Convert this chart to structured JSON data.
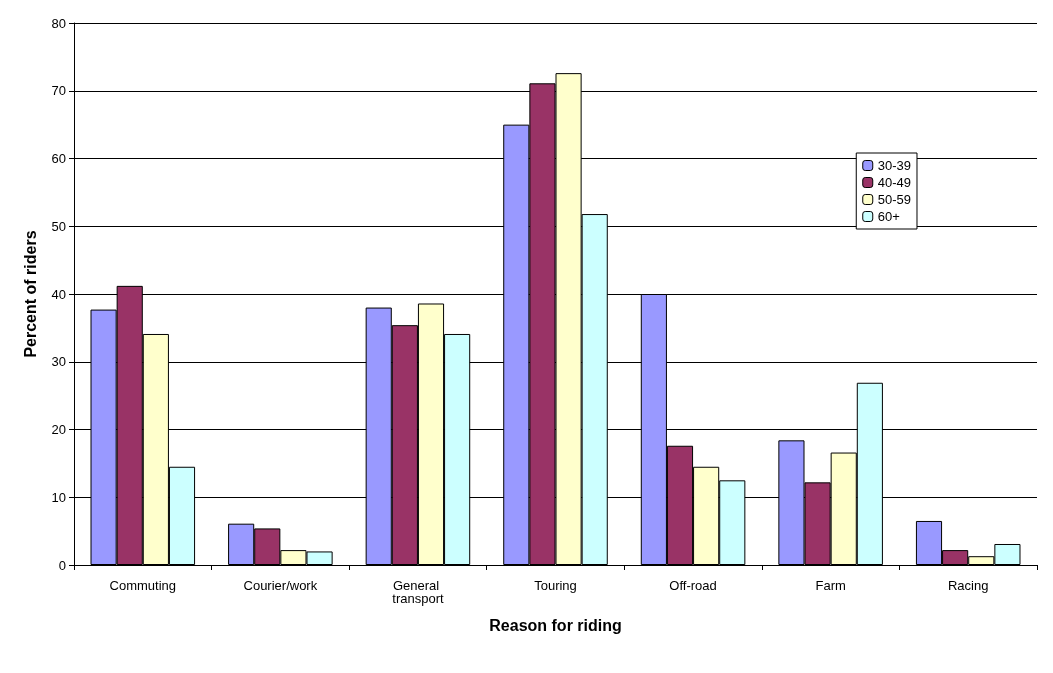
{
  "chart_data": {
    "type": "bar",
    "xlabel": "Reason for riding",
    "ylabel": "Percent of riders",
    "categories": [
      "Commuting",
      "Courier/work",
      "General transport",
      "Touring",
      "Off-road",
      "Farm",
      "Racing"
    ],
    "series": [
      {
        "name": "30-39",
        "color": "#9999ff",
        "values": [
          37.7,
          6.1,
          38.0,
          65.0,
          40.0,
          18.4,
          6.5
        ]
      },
      {
        "name": "40-49",
        "color": "#993366",
        "values": [
          41.2,
          5.4,
          35.4,
          71.1,
          17.6,
          12.2,
          2.2
        ]
      },
      {
        "name": "50-59",
        "color": "#ffffcc",
        "values": [
          34.1,
          2.2,
          38.6,
          72.6,
          14.5,
          16.6,
          1.3
        ]
      },
      {
        "name": "60+",
        "color": "#ccffff",
        "values": [
          14.5,
          2.0,
          34.1,
          51.8,
          12.5,
          26.9,
          3.1
        ]
      }
    ],
    "ylim": [
      0,
      80
    ],
    "yticks": [
      0,
      10,
      20,
      30,
      40,
      50,
      60,
      70,
      80
    ],
    "grid": "y",
    "legend": "right"
  }
}
